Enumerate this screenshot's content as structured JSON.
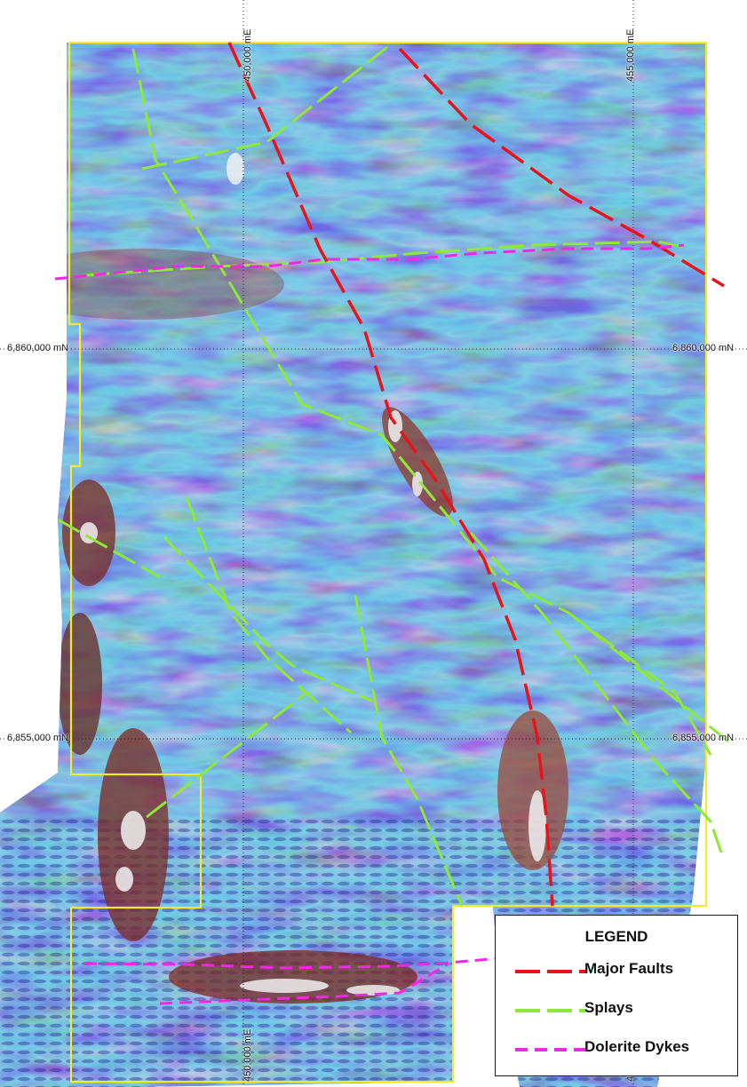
{
  "grid_labels": {
    "easting_450": "450,000 mE",
    "easting_455": "455,000 mE",
    "northing_6860": "6,860,000 mN",
    "northing_6855": "6,855,000 mN"
  },
  "legend": {
    "title": "LEGEND",
    "items": [
      {
        "label": "Major Faults",
        "color": "#e8141b",
        "dash": "long"
      },
      {
        "label": "Splays",
        "color": "#8ee83a",
        "dash": "long"
      },
      {
        "label": "Dolerite Dykes",
        "color": "#f028e6",
        "dash": "short"
      }
    ]
  },
  "colors": {
    "tenement_boundary": "#f2ea2a",
    "magnetic_low": "#2b2bbf",
    "magnetic_mid": "#3fd0c0",
    "magnetic_high": "#f2f2f2",
    "magnetic_edge": "#8a2a20"
  }
}
